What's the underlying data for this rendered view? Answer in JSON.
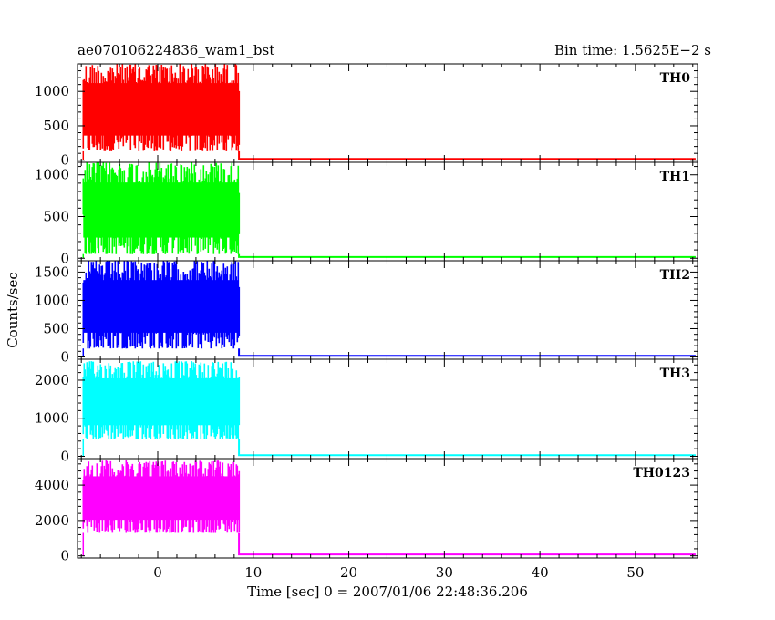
{
  "header": {
    "title": "ae070106224836_wam1_bst",
    "bin_time": "Bin time: 1.5625E−2 s"
  },
  "chart_data": {
    "type": "line",
    "xlabel": "Time [sec] 0 = 2007/01/06 22:48:36.206",
    "ylabel": "Counts/sec",
    "xlim": [
      -8.4,
      56.5
    ],
    "xticks": [
      0,
      10,
      20,
      30,
      40,
      50
    ],
    "burst_window": [
      -7.8,
      8.5
    ],
    "grid": false,
    "panels": [
      {
        "name": "TH0",
        "color": "#ff0000",
        "ylim": [
          -30,
          1400
        ],
        "yticks": [
          0,
          500,
          1000
        ],
        "signal_low": 130,
        "signal_high": 1400,
        "tail": 20
      },
      {
        "name": "TH1",
        "color": "#00ff00",
        "ylim": [
          -30,
          1150
        ],
        "yticks": [
          0,
          500,
          1000
        ],
        "signal_low": 50,
        "signal_high": 1150,
        "tail": 15
      },
      {
        "name": "TH2",
        "color": "#0000ff",
        "ylim": [
          -40,
          1700
        ],
        "yticks": [
          0,
          500,
          1000,
          1500
        ],
        "signal_low": 150,
        "signal_high": 1700,
        "tail": 20
      },
      {
        "name": "TH3",
        "color": "#00ffff",
        "ylim": [
          -60,
          2550
        ],
        "yticks": [
          0,
          1000,
          2000
        ],
        "signal_low": 450,
        "signal_high": 2500,
        "tail": 30
      },
      {
        "name": "TH0123",
        "color": "#ff00ff",
        "ylim": [
          -120,
          5500
        ],
        "yticks": [
          0,
          2000,
          4000
        ],
        "signal_low": 1300,
        "signal_high": 5400,
        "tail": 80
      }
    ]
  }
}
